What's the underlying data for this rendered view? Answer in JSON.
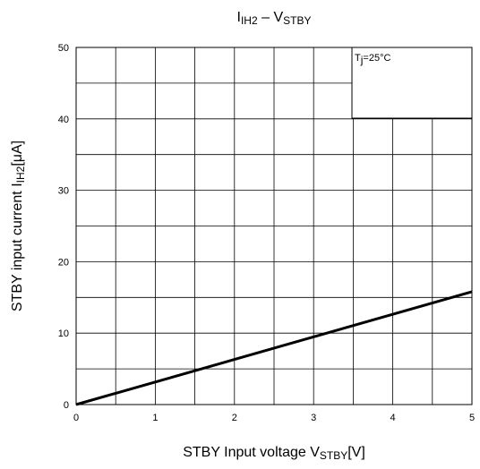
{
  "chart_data": {
    "type": "line",
    "title": [
      {
        "text": "I"
      },
      {
        "text": "IH2",
        "sub": true
      },
      {
        "text": " – V"
      },
      {
        "text": "STBY",
        "sub": true
      }
    ],
    "x_label": [
      {
        "text": "STBY Input voltage V"
      },
      {
        "text": "STBY",
        "sub": true
      },
      {
        "text": "[V]"
      }
    ],
    "y_label": [
      {
        "text": "STBY input current I"
      },
      {
        "text": "IH2",
        "sub": true
      },
      {
        "text": "[μA]"
      }
    ],
    "annotation": [
      {
        "text": "T"
      },
      {
        "text": "j",
        "sub": true
      },
      {
        "text": "=25°C"
      }
    ],
    "x": [
      0,
      5
    ],
    "series": [
      {
        "name": "IIH2",
        "color": "#000000",
        "values": [
          0,
          15.8
        ]
      }
    ],
    "xlim": [
      0,
      5
    ],
    "xticks": [
      0,
      1,
      2,
      3,
      4,
      5
    ],
    "minor_xticks": [
      0.5,
      1.5,
      2.5,
      3.5,
      4.5
    ],
    "ylim": [
      0,
      50
    ],
    "yticks": [
      0,
      10,
      20,
      30,
      40,
      50
    ],
    "minor_yticks": [
      5,
      15,
      25,
      35,
      45
    ],
    "grid": true
  }
}
